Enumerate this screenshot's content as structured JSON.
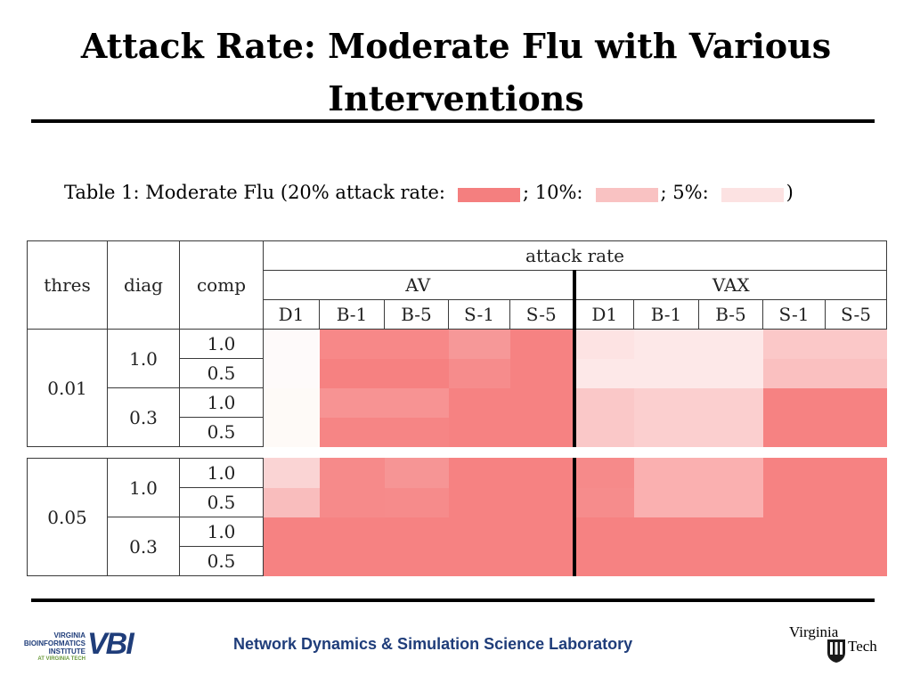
{
  "title": {
    "line1": "Attack Rate: Moderate Flu with Various",
    "line2": "Interventions"
  },
  "caption": {
    "prefix": "Table 1: Moderate Flu (20% attack rate:",
    "mid1": "; 10%:",
    "mid2": "; 5%:",
    "suffix": ")",
    "legend_colors": [
      "#f47f7f",
      "#f9c2c2",
      "#fce2e2"
    ]
  },
  "table": {
    "headers": {
      "thres": "thres",
      "diag": "diag",
      "comp": "comp",
      "attack_rate": "attack rate",
      "group_av": "AV",
      "group_vax": "VAX",
      "columns": [
        "D1",
        "B-1",
        "B-5",
        "S-1",
        "S-5",
        "D1",
        "B-1",
        "B-5",
        "S-1",
        "S-5"
      ]
    },
    "blocks": [
      {
        "thres": "0.01",
        "diag_groups": [
          {
            "diag": "1.0",
            "rows": [
              {
                "comp": "1.0",
                "cells": [
                  "#fefafa",
                  "#f78888",
                  "#f78888",
                  "#f69898",
                  "#f68282",
                  "#fde3e3",
                  "#fde8e8",
                  "#fde8e8",
                  "#fbc8c8",
                  "#fbc8c8"
                ]
              },
              {
                "comp": "0.5",
                "cells": [
                  "#fefafa",
                  "#f68181",
                  "#f68181",
                  "#f68c8c",
                  "#f68282",
                  "#fde8e8",
                  "#fde8e8",
                  "#fde8e8",
                  "#fac0c0",
                  "#fac0c0"
                ]
              }
            ]
          },
          {
            "diag": "0.3",
            "rows": [
              {
                "comp": "1.0",
                "cells": [
                  "#fefaf7",
                  "#f79393",
                  "#f79393",
                  "#f68282",
                  "#f68282",
                  "#fac8c8",
                  "#fbcfcf",
                  "#fbcfcf",
                  "#f68282",
                  "#f68282"
                ]
              },
              {
                "comp": "0.5",
                "cells": [
                  "#fefaf7",
                  "#f68585",
                  "#f68585",
                  "#f68282",
                  "#f68282",
                  "#fac8c8",
                  "#fbcfcf",
                  "#fbcfcf",
                  "#f68282",
                  "#f68282"
                ]
              }
            ]
          }
        ]
      },
      {
        "thres": "0.05",
        "diag_groups": [
          {
            "diag": "1.0",
            "rows": [
              {
                "comp": "1.0",
                "cells": [
                  "#fad4d4",
                  "#f68a8a",
                  "#f69595",
                  "#f68282",
                  "#f68282",
                  "#f68a8a",
                  "#fab0b0",
                  "#fab0b0",
                  "#f68282",
                  "#f68282"
                ]
              },
              {
                "comp": "0.5",
                "cells": [
                  "#f9bdbd",
                  "#f68a8a",
                  "#f68b8b",
                  "#f68282",
                  "#f68282",
                  "#f68c8c",
                  "#fab0b0",
                  "#fab0b0",
                  "#f68282",
                  "#f68282"
                ]
              }
            ]
          },
          {
            "diag": "0.3",
            "rows": [
              {
                "comp": "1.0",
                "cells": [
                  "#f68282",
                  "#f68282",
                  "#f68282",
                  "#f68282",
                  "#f68282",
                  "#f68282",
                  "#f68282",
                  "#f68282",
                  "#f68282",
                  "#f68282"
                ]
              },
              {
                "comp": "0.5",
                "cells": [
                  "#f68282",
                  "#f68282",
                  "#f68282",
                  "#f68282",
                  "#f68282",
                  "#f68282",
                  "#f68282",
                  "#f68282",
                  "#f68282",
                  "#f68282"
                ]
              }
            ]
          }
        ]
      }
    ]
  },
  "footer": {
    "lab_name": "Network Dynamics & Simulation Science Laboratory",
    "vbi_logo": {
      "line1": "VIRGINIA",
      "line2": "BIOINFORMATICS",
      "line3": "INSTITUTE",
      "line4": "AT VIRGINIA TECH",
      "mark": "VBI"
    },
    "vt_logo": {
      "word1": "Virginia",
      "word2": "Tech"
    }
  }
}
